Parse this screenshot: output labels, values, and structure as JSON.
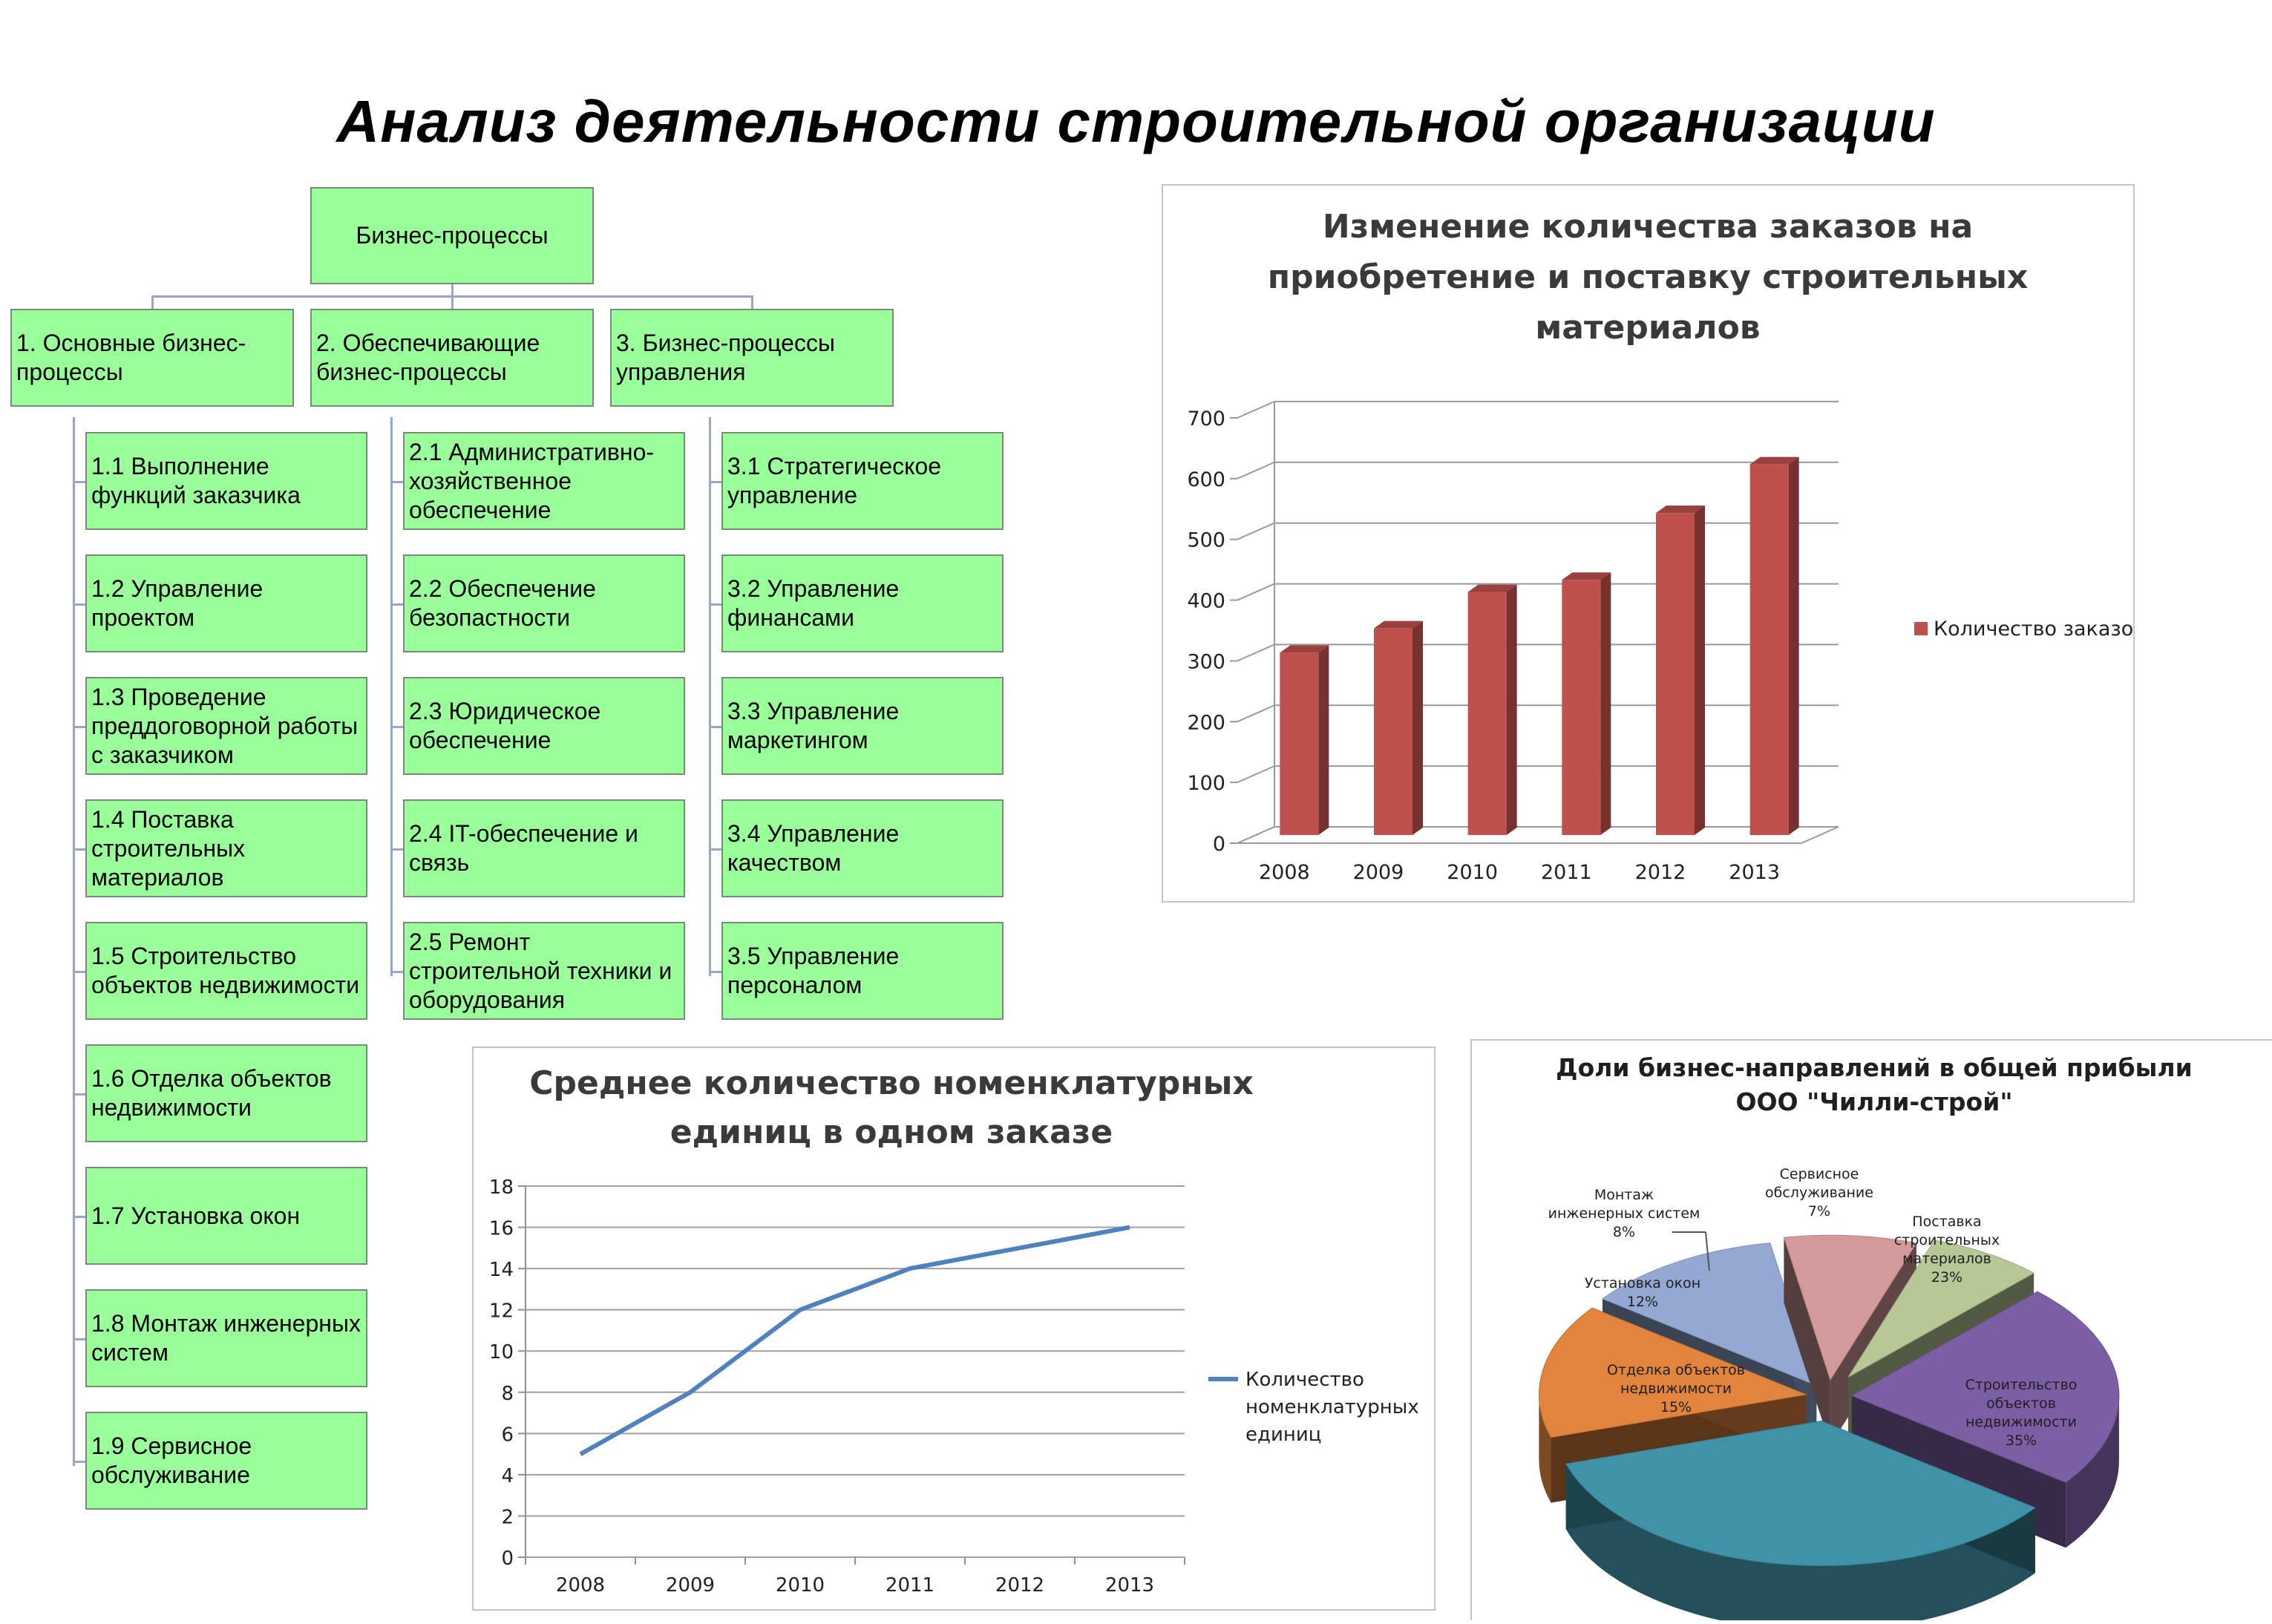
{
  "page_title": "Анализ деятельности строительной организации",
  "tree": {
    "root": "Бизнес-процессы",
    "columns": [
      {
        "header": "1. Основные бизнес-\nпроцессы",
        "items": [
          "1.1 Выполнение\nфункций заказчика",
          "1.2 Управление\nпроектом",
          "1.3 Проведение\nпреддоговорной работы\nс заказчиком",
          "1.4 Поставка\nстроительных\nматериалов",
          "1.5 Строительство\nобъектов недвижимости",
          "1.6 Отделка объектов\nнедвижимости",
          "1.7 Установка окон",
          "1.8 Монтаж инженерных\nсистем",
          "1.9 Сервисное\nобслуживание"
        ]
      },
      {
        "header": "2. Обеспечивающие\nбизнес-процессы",
        "items": [
          "2.1 Административно-\nхозяйственное\nобеспечение",
          "2.2 Обеспечение\nбезопастности",
          "2.3 Юридическое\nобеспечение",
          "2.4 IT-обеспечение и\nсвязь",
          "2.5 Ремонт\nстроительной техники и\nоборудования"
        ]
      },
      {
        "header": "3. Бизнес-процессы\nуправления",
        "items": [
          "3.1 Стратегическое\nуправление",
          "3.2 Управление\nфинансами",
          "3.3 Управление\nмаркетингом",
          "3.4 Управление\nкачеством",
          "3.5 Управление\nперсоналом"
        ]
      }
    ]
  },
  "colors": {
    "box_fill": "#99ff99",
    "bar": "#c0504d",
    "line": "#4f81bd"
  },
  "chart_data": [
    {
      "type": "bar",
      "title_lines": [
        "Изменение количества заказов на",
        "приобретение и поставку строительных",
        "материалов"
      ],
      "categories": [
        "2008",
        "2009",
        "2010",
        "2011",
        "2012",
        "2013"
      ],
      "series": [
        {
          "name": "Количество заказов",
          "values": [
            300,
            340,
            400,
            420,
            530,
            610
          ]
        }
      ],
      "ylim": [
        0,
        700
      ],
      "yticks": [
        "0",
        "100",
        "200",
        "300",
        "400",
        "500",
        "600",
        "700"
      ],
      "grid": true,
      "legend": "right",
      "style": "3d-column"
    },
    {
      "type": "line",
      "title_lines": [
        "Среднее количество номенклатурных",
        "единиц в одном заказе"
      ],
      "categories": [
        "2008",
        "2009",
        "2010",
        "2011",
        "2012",
        "2013"
      ],
      "series": [
        {
          "name_lines": [
            "Количество",
            "номенклатурных",
            "единиц"
          ],
          "values": [
            5,
            8,
            12,
            14,
            15,
            16
          ]
        }
      ],
      "ylim": [
        0,
        18
      ],
      "yticks": [
        "0",
        "2",
        "4",
        "6",
        "8",
        "10",
        "12",
        "14",
        "16",
        "18"
      ],
      "grid": true,
      "legend": "right"
    },
    {
      "type": "pie",
      "style": "3d-exploded",
      "title_lines": [
        "Доли бизнес-направлений в общей прибыли",
        "ООО \"Чилли-строй\""
      ],
      "slices": [
        {
          "label_lines": [
            "Поставка",
            "строительных",
            "материалов"
          ],
          "pct": "23%",
          "value": 23,
          "color": "#7b5ea3"
        },
        {
          "label_lines": [
            "Строительство",
            "объектов",
            "недвижимости"
          ],
          "pct": "35%",
          "value": 35,
          "color": "#3f92a8"
        },
        {
          "label_lines": [
            "Отделка объектов",
            "недвижимости"
          ],
          "pct": "15%",
          "value": 15,
          "color": "#e0843e"
        },
        {
          "label_lines": [
            "Установка окон"
          ],
          "pct": "12%",
          "value": 12,
          "color": "#93a9d3"
        },
        {
          "label_lines": [
            "Монтаж",
            "инженерных систем"
          ],
          "pct": "8%",
          "value": 8,
          "color": "#d49a9a"
        },
        {
          "label_lines": [
            "Сервисное",
            "обслуживание"
          ],
          "pct": "7%",
          "value": 7,
          "color": "#b7c795"
        }
      ]
    }
  ]
}
